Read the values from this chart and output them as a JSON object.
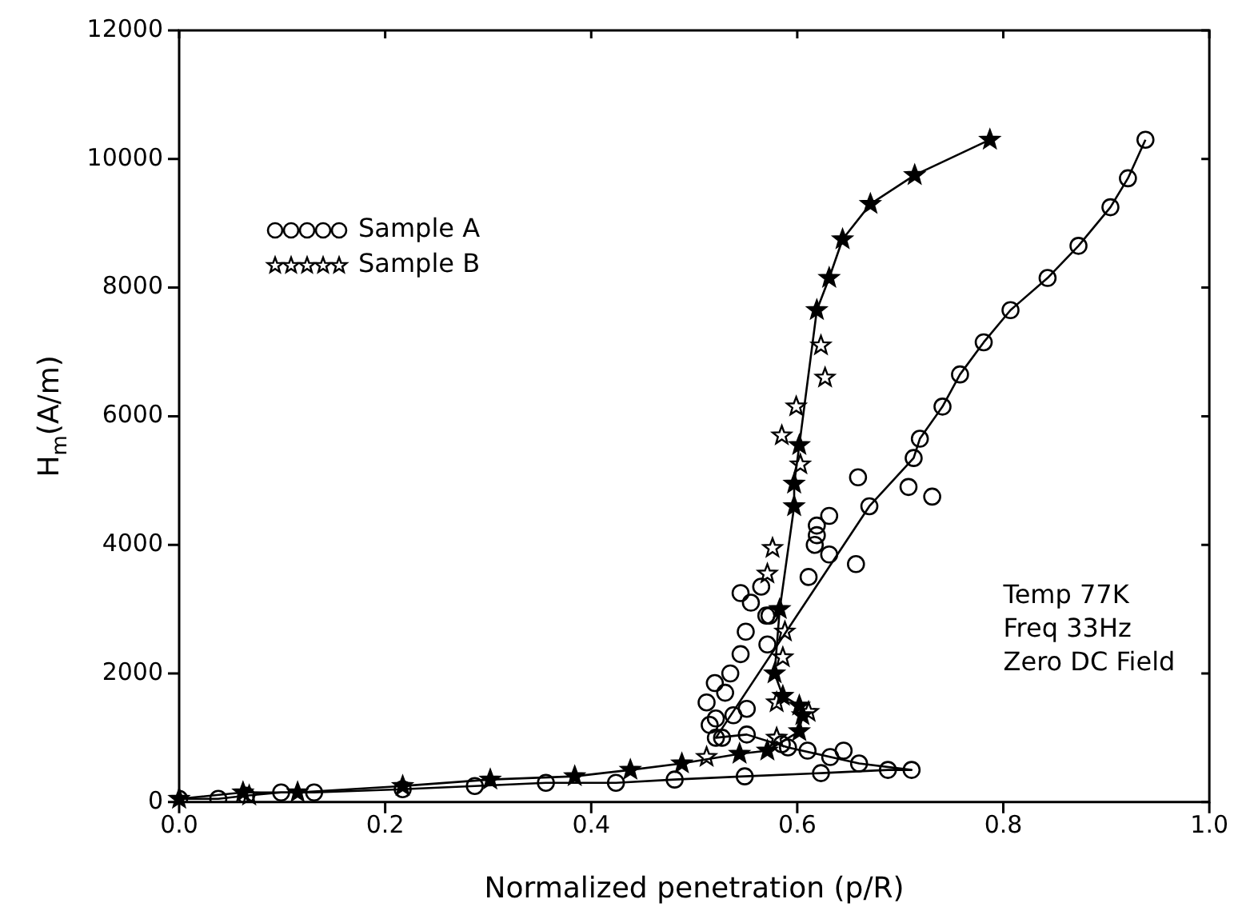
{
  "chart_data": {
    "type": "scatter",
    "xlabel": "Normalized penetration (p/R)",
    "ylabel": "H$_{m}$(A/m)",
    "xlim": [
      0,
      1
    ],
    "xticks": [
      {
        "value": 0,
        "label": "0.0"
      },
      {
        "value": 0.2,
        "label": "0.2"
      },
      {
        "value": 0.4,
        "label": "0.4"
      },
      {
        "value": 0.6,
        "label": "0.6"
      },
      {
        "value": 0.8,
        "label": "0.8"
      },
      {
        "value": 1,
        "label": "1.0"
      }
    ],
    "ylim": [
      0,
      12000
    ],
    "yticks": [
      0,
      2000,
      4000,
      6000,
      8000,
      10000,
      12000
    ],
    "grid": false,
    "legend": "top left",
    "annotations": [
      "Temp 77K",
      "Freq 33Hz",
      "Zero DC Field"
    ],
    "series": [
      {
        "name": "Sample A",
        "type": "scatter",
        "marker": "circle",
        "color": "#000000",
        "x": [
          0.659,
          0.708,
          0.731,
          0.631,
          0.619,
          0.619,
          0.617,
          0.631,
          0.657,
          0.611,
          0.573,
          0.571,
          0.512,
          0.515,
          0.521,
          0.538,
          0.551,
          0.527,
          0.585,
          0.61,
          0.632,
          0.645,
          0.52,
          0.53,
          0.535,
          0.545,
          0.55,
          0.555,
          0.545,
          0.565,
          0.57
        ],
        "values": [
          5050,
          4900,
          4750,
          4450,
          4300,
          4150,
          4000,
          3850,
          3700,
          3500,
          2900,
          2450,
          1550,
          1200,
          1300,
          1350,
          1450,
          1000,
          900,
          800,
          700,
          800,
          1850,
          1700,
          2000,
          2300,
          2650,
          3100,
          3250,
          3350,
          2900
        ]
      },
      {
        "name": "Sample B",
        "type": "scatter",
        "marker": "star",
        "color": "#000000",
        "x": [
          0.068,
          0.512,
          0.58,
          0.611,
          0.58,
          0.586,
          0.588,
          0.571,
          0.576,
          0.603,
          0.585,
          0.599,
          0.627,
          0.623
        ],
        "values": [
          100,
          700,
          1000,
          1400,
          1550,
          2250,
          2650,
          3550,
          3950,
          5250,
          5700,
          6150,
          6600,
          7100
        ]
      },
      {
        "type": "line",
        "marker": "circle",
        "line_style": "solid",
        "color": "#000000",
        "x": [
          0,
          0.038,
          0.065,
          0.099,
          0.131,
          0.217,
          0.287,
          0.356,
          0.424,
          0.481,
          0.549,
          0.623,
          0.688,
          0.711,
          0.66,
          0.591,
          0.551,
          0.521,
          0.67,
          0.713,
          0.719,
          0.741,
          0.758,
          0.781,
          0.807,
          0.843,
          0.873,
          0.904,
          0.921,
          0.938
        ],
        "values": [
          50,
          50,
          100,
          150,
          150,
          200,
          250,
          300,
          300,
          350,
          400,
          450,
          500,
          500,
          600,
          850,
          1050,
          1000,
          4600,
          5350,
          5650,
          6150,
          6650,
          7150,
          7650,
          8150,
          8650,
          9250,
          9700,
          10300
        ]
      },
      {
        "type": "line",
        "marker": "star",
        "line_style": "solid",
        "color": "#000000",
        "x": [
          0,
          0.062,
          0.115,
          0.217,
          0.302,
          0.384,
          0.438,
          0.488,
          0.544,
          0.571,
          0.602,
          0.605,
          0.602,
          0.586,
          0.578,
          0.583,
          0.597,
          0.597,
          0.602,
          0.619,
          0.631,
          0.644,
          0.671,
          0.714,
          0.787
        ],
        "values": [
          50,
          150,
          150,
          250,
          350,
          400,
          500,
          600,
          750,
          800,
          1100,
          1350,
          1500,
          1650,
          2000,
          3000,
          4600,
          4950,
          5550,
          7650,
          8150,
          8750,
          9300,
          9750,
          10300
        ]
      }
    ]
  }
}
